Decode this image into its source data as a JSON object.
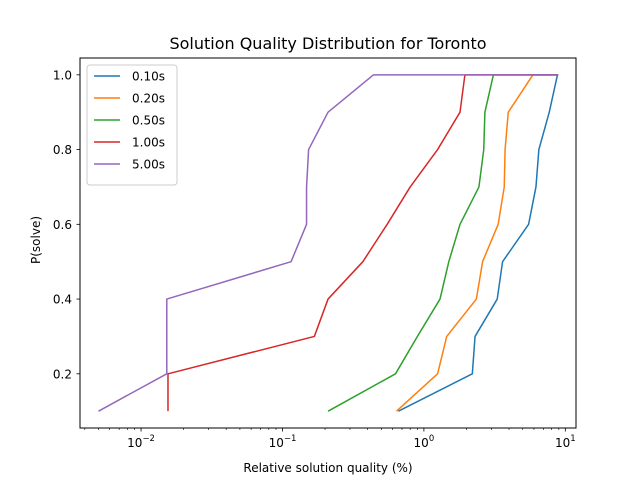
{
  "chart_data": {
    "type": "line",
    "title": "Solution Quality Distribution for Toronto",
    "xlabel": "Relative solution quality (%)",
    "ylabel": "P(solve)",
    "xscale": "log",
    "xlim": [
      0.0037,
      11.9
    ],
    "ylim": [
      0.055,
      1.045
    ],
    "x_ticks": [
      {
        "value": 0.01,
        "base": "10",
        "exp": "−2"
      },
      {
        "value": 0.1,
        "base": "10",
        "exp": "−1"
      },
      {
        "value": 1,
        "base": "10",
        "exp": "0"
      },
      {
        "value": 10,
        "base": "10",
        "exp": "1"
      }
    ],
    "y_ticks": [
      {
        "value": 0.2,
        "label": "0.2"
      },
      {
        "value": 0.4,
        "label": "0.4"
      },
      {
        "value": 0.6,
        "label": "0.6"
      },
      {
        "value": 0.8,
        "label": "0.8"
      },
      {
        "value": 1.0,
        "label": "1.0"
      }
    ],
    "grid": false,
    "legend_position": "top-left",
    "series": [
      {
        "name": "0.10s",
        "color": "#1f77b4",
        "points": [
          [
            0.66,
            0.1
          ],
          [
            2.2,
            0.2
          ],
          [
            2.3,
            0.3
          ],
          [
            3.3,
            0.4
          ],
          [
            3.6,
            0.5
          ],
          [
            5.5,
            0.6
          ],
          [
            6.2,
            0.7
          ],
          [
            6.5,
            0.8
          ],
          [
            7.7,
            0.9
          ],
          [
            8.8,
            1.0
          ],
          [
            8.5,
            1.0
          ]
        ]
      },
      {
        "name": "0.20s",
        "color": "#ff7f0e",
        "points": [
          [
            0.64,
            0.1
          ],
          [
            1.25,
            0.2
          ],
          [
            1.45,
            0.3
          ],
          [
            2.35,
            0.4
          ],
          [
            2.6,
            0.5
          ],
          [
            3.35,
            0.6
          ],
          [
            3.7,
            0.7
          ],
          [
            3.75,
            0.8
          ],
          [
            3.95,
            0.9
          ],
          [
            5.9,
            1.0
          ],
          [
            8.9,
            1.0
          ]
        ]
      },
      {
        "name": "0.50s",
        "color": "#2ca02c",
        "points": [
          [
            0.21,
            0.1
          ],
          [
            0.63,
            0.2
          ],
          [
            0.9,
            0.3
          ],
          [
            1.3,
            0.4
          ],
          [
            1.5,
            0.5
          ],
          [
            1.8,
            0.6
          ],
          [
            2.45,
            0.7
          ],
          [
            2.65,
            0.8
          ],
          [
            2.7,
            0.9
          ],
          [
            3.1,
            1.0
          ],
          [
            8.9,
            1.0
          ]
        ]
      },
      {
        "name": "1.00s",
        "color": "#d62728",
        "points": [
          [
            0.0155,
            0.1
          ],
          [
            0.0155,
            0.2
          ],
          [
            0.168,
            0.3
          ],
          [
            0.21,
            0.4
          ],
          [
            0.37,
            0.5
          ],
          [
            0.55,
            0.6
          ],
          [
            0.8,
            0.7
          ],
          [
            1.25,
            0.8
          ],
          [
            1.8,
            0.9
          ],
          [
            1.95,
            1.0
          ],
          [
            8.9,
            1.0
          ]
        ]
      },
      {
        "name": "5.00s",
        "color": "#9467bd",
        "points": [
          [
            0.005,
            0.1
          ],
          [
            0.0152,
            0.2
          ],
          [
            0.0152,
            0.4
          ],
          [
            0.115,
            0.5
          ],
          [
            0.148,
            0.6
          ],
          [
            0.148,
            0.7
          ],
          [
            0.153,
            0.8
          ],
          [
            0.21,
            0.9
          ],
          [
            0.44,
            1.0
          ],
          [
            8.9,
            1.0
          ]
        ]
      }
    ]
  }
}
